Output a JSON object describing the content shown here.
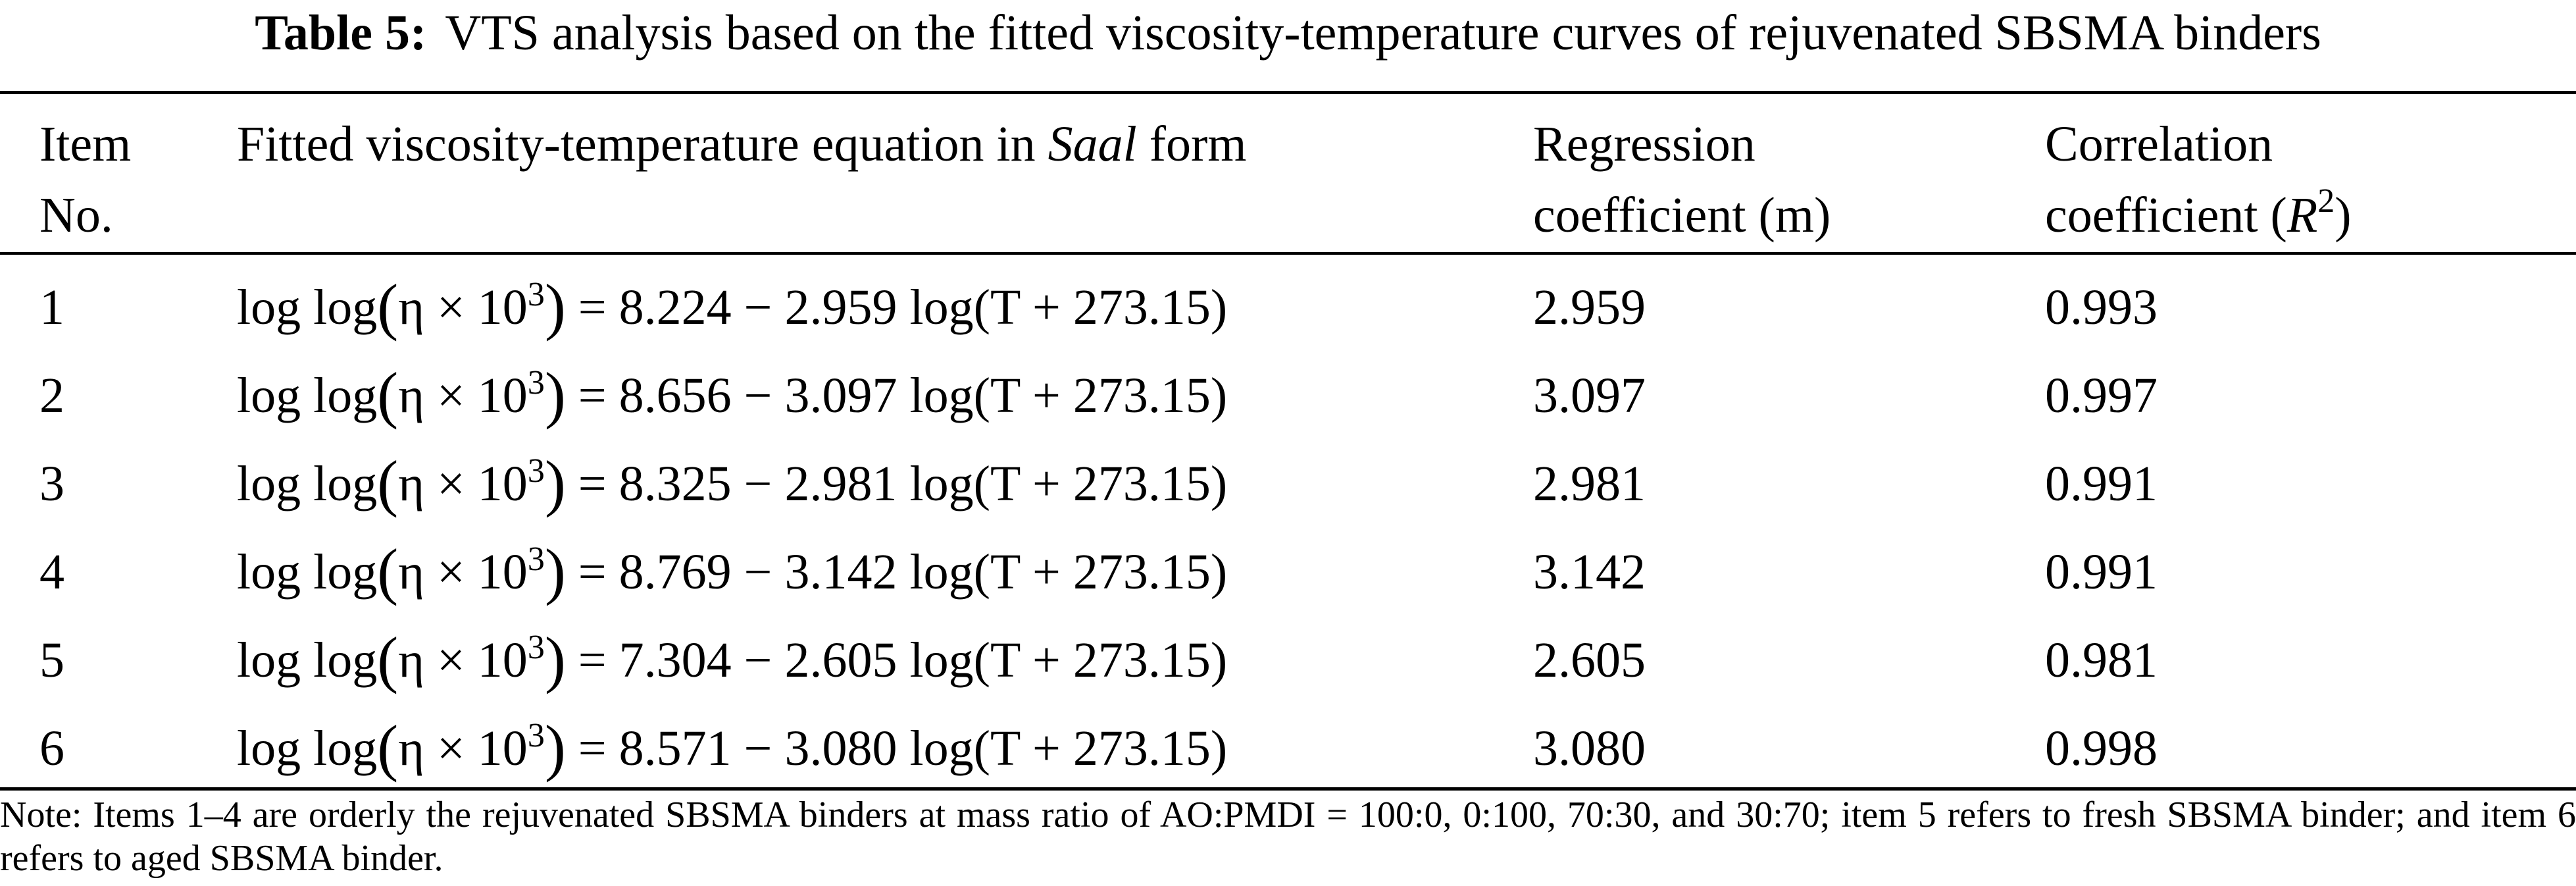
{
  "table": {
    "caption_label": "Table 5:",
    "caption_text": "VTS analysis based on the fitted viscosity-temperature curves of rejuvenated SBSMA binders",
    "headers": {
      "item_line1": "Item",
      "item_line2": "No.",
      "eq_prefix": "Fitted viscosity-temperature equation in ",
      "eq_italic": "Saal",
      "eq_suffix": " form",
      "reg_line1": "Regression",
      "reg_line2": "coefficient (m)",
      "corr_line1": "Correlation",
      "corr_line2_prefix": "coefficient (",
      "corr_line2_var": "R",
      "corr_line2_sup": "2",
      "corr_line2_suffix": ")"
    },
    "equation_parts": {
      "lhs": "log log",
      "open": "(",
      "eta": "η × 10",
      "exp": "3",
      "close": ")",
      "equals": " = ",
      "minus": " − ",
      "rhs_log": " log(T + 273.15)"
    },
    "rows": [
      {
        "item": "1",
        "a": "8.224",
        "b": "2.959",
        "m": "2.959",
        "r2": "0.993"
      },
      {
        "item": "2",
        "a": "8.656",
        "b": "3.097",
        "m": "3.097",
        "r2": "0.997"
      },
      {
        "item": "3",
        "a": "8.325",
        "b": "2.981",
        "m": "2.981",
        "r2": "0.991"
      },
      {
        "item": "4",
        "a": "8.769",
        "b": "3.142",
        "m": "3.142",
        "r2": "0.991"
      },
      {
        "item": "5",
        "a": "7.304",
        "b": "2.605",
        "m": "2.605",
        "r2": "0.981"
      },
      {
        "item": "6",
        "a": "8.571",
        "b": "3.080",
        "m": "3.080",
        "r2": "0.998"
      }
    ],
    "note": "Note: Items 1–4 are orderly the rejuvenated SBSMA binders at mass ratio of AO:PMDI = 100:0, 0:100, 70:30, and 30:70; item 5 refers to fresh SBSMA binder; and item 6 refers to aged SBSMA binder."
  }
}
